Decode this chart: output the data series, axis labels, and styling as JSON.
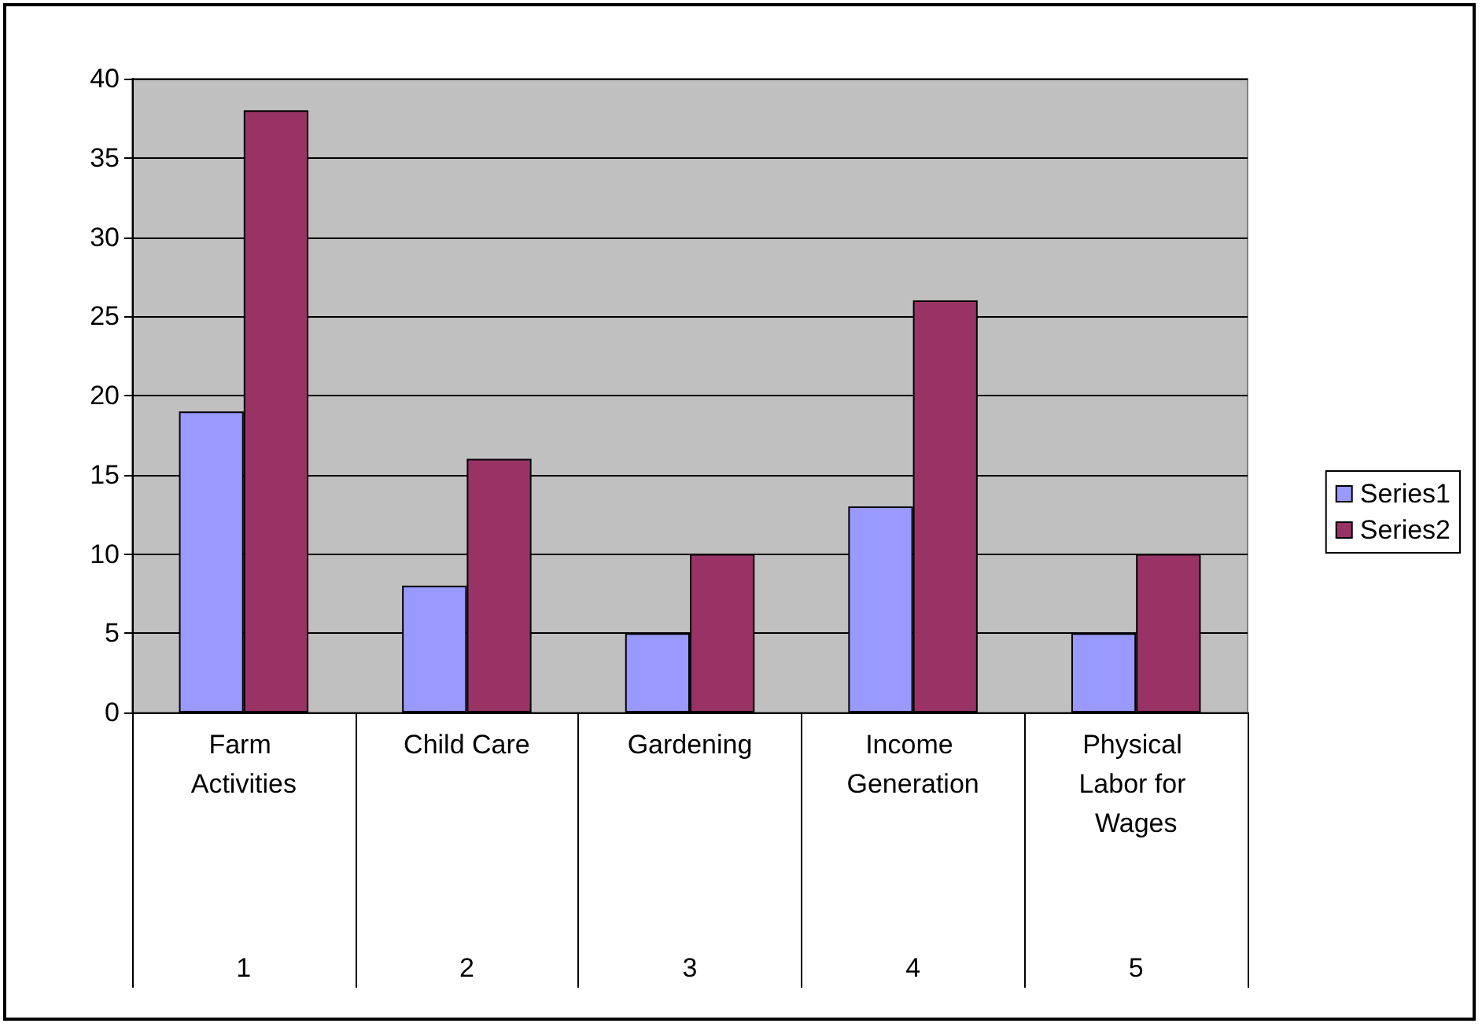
{
  "chart_data": {
    "type": "bar",
    "categories": [
      "Farm Activities",
      "Child Care",
      "Gardening",
      "Income Generation",
      "Physical Labor for Wages"
    ],
    "series": [
      {
        "name": "Series1",
        "color": "#9999ff",
        "values": [
          19,
          8,
          5,
          13,
          5
        ]
      },
      {
        "name": "Series2",
        "color": "#993366",
        "values": [
          38,
          16,
          10,
          26,
          10
        ]
      }
    ],
    "annotations": [
      "1",
      "2",
      "3",
      "4",
      "5"
    ],
    "ylim": [
      0,
      40
    ],
    "yticks": [
      0,
      5,
      10,
      15,
      20,
      25,
      30,
      35,
      40
    ],
    "grid": "y",
    "legend": "right"
  }
}
